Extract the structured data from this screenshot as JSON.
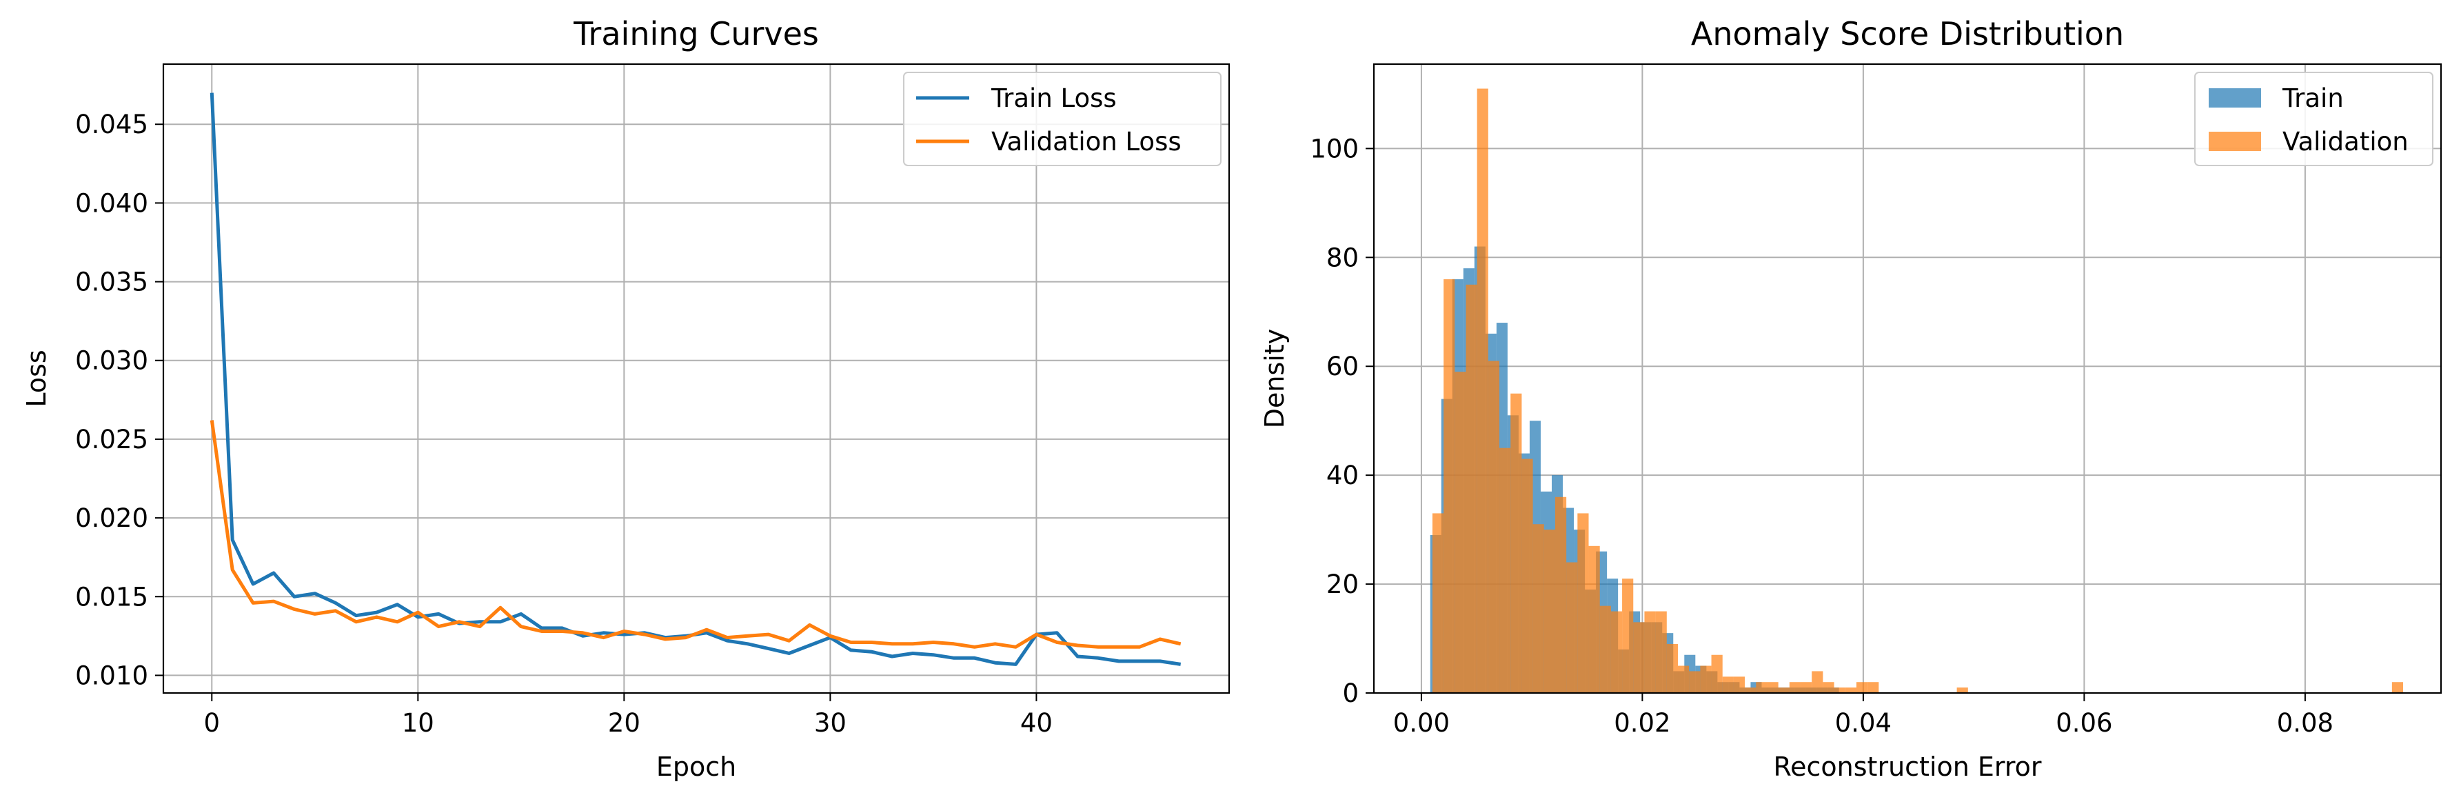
{
  "chart_data": [
    {
      "type": "line",
      "title": "Training Curves",
      "xlabel": "Epoch",
      "ylabel": "Loss",
      "xlim": [
        -2.35,
        49.35
      ],
      "ylim": [
        0.00888,
        0.04882
      ],
      "grid": true,
      "legend_position": "top-right",
      "x_ticks": [
        0,
        10,
        20,
        30,
        40
      ],
      "y_ticks": [
        0.01,
        0.015,
        0.02,
        0.025,
        0.03,
        0.035,
        0.04,
        0.045
      ],
      "x_tick_labels": [
        "0",
        "10",
        "20",
        "30",
        "40"
      ],
      "y_tick_labels": [
        "0.010",
        "0.015",
        "0.020",
        "0.025",
        "0.030",
        "0.035",
        "0.040",
        "0.045"
      ],
      "x": [
        0,
        1,
        2,
        3,
        4,
        5,
        6,
        7,
        8,
        9,
        10,
        11,
        12,
        13,
        14,
        15,
        16,
        17,
        18,
        19,
        20,
        21,
        22,
        23,
        24,
        25,
        26,
        27,
        28,
        29,
        30,
        31,
        32,
        33,
        34,
        35,
        36,
        37,
        38,
        39,
        40,
        41,
        42,
        43,
        44,
        45,
        46,
        47
      ],
      "series": [
        {
          "name": "Train Loss",
          "color": "#1f77b4",
          "values": [
            0.047,
            0.0186,
            0.0158,
            0.0165,
            0.015,
            0.0152,
            0.0146,
            0.0138,
            0.014,
            0.0145,
            0.0137,
            0.0139,
            0.0133,
            0.0134,
            0.0134,
            0.0139,
            0.013,
            0.013,
            0.0125,
            0.0127,
            0.0126,
            0.0127,
            0.0124,
            0.0125,
            0.0127,
            0.0122,
            0.012,
            0.0117,
            0.0114,
            0.0119,
            0.0124,
            0.0116,
            0.0115,
            0.0112,
            0.0114,
            0.0113,
            0.0111,
            0.0111,
            0.0108,
            0.0107,
            0.0126,
            0.0127,
            0.0112,
            0.0111,
            0.0109,
            0.0109,
            0.0109,
            0.0107
          ]
        },
        {
          "name": "Validation Loss",
          "color": "#ff7f0e",
          "values": [
            0.0262,
            0.0167,
            0.0146,
            0.0147,
            0.0142,
            0.0139,
            0.0141,
            0.0134,
            0.0137,
            0.0134,
            0.014,
            0.0131,
            0.0134,
            0.0131,
            0.0143,
            0.0131,
            0.0128,
            0.0128,
            0.0127,
            0.0124,
            0.0128,
            0.0126,
            0.0123,
            0.0124,
            0.0129,
            0.0124,
            0.0125,
            0.0126,
            0.0122,
            0.0132,
            0.0125,
            0.0121,
            0.0121,
            0.012,
            0.012,
            0.0121,
            0.012,
            0.0118,
            0.012,
            0.0118,
            0.0126,
            0.0121,
            0.0119,
            0.0118,
            0.0118,
            0.0118,
            0.0123,
            0.012
          ]
        }
      ]
    },
    {
      "type": "histogram",
      "title": "Anomaly Score Distribution",
      "xlabel": "Reconstruction Error",
      "ylabel": "Density",
      "xlim": [
        -0.0043,
        0.0923
      ],
      "ylim": [
        0,
        115.5
      ],
      "grid": true,
      "legend_position": "top-right",
      "x_ticks": [
        0.0,
        0.02,
        0.04,
        0.06,
        0.08
      ],
      "y_ticks": [
        0,
        20,
        40,
        60,
        80,
        100
      ],
      "x_tick_labels": [
        "0.00",
        "0.02",
        "0.04",
        "0.06",
        "0.08"
      ],
      "y_tick_labels": [
        "0",
        "20",
        "40",
        "60",
        "80",
        "100"
      ],
      "series": [
        {
          "name": "Train",
          "color": "#1f77b4",
          "opacity": 0.7,
          "bin_start": 0.0008,
          "bin_width": 0.001,
          "values": [
            29,
            54,
            76,
            78,
            82,
            66,
            68,
            51,
            44,
            50,
            37,
            40,
            34,
            30,
            19,
            26,
            21,
            8,
            15,
            13,
            13,
            11,
            4,
            7,
            5,
            4,
            2,
            2,
            1,
            2,
            1,
            1,
            1,
            1,
            1,
            1,
            1,
            0,
            0,
            0,
            0,
            0,
            0,
            0,
            0,
            0,
            0,
            0,
            0,
            0,
            0,
            0,
            0,
            0,
            0,
            0,
            0,
            0,
            0,
            0,
            0,
            0,
            0,
            0,
            0,
            0,
            0,
            0,
            0,
            0,
            0,
            0,
            0,
            0,
            0,
            0,
            0,
            0,
            0,
            0,
            0,
            0,
            0,
            0,
            0,
            0,
            0
          ]
        },
        {
          "name": "Validation",
          "color": "#ff7f0e",
          "opacity": 0.7,
          "bin_start": 0.001,
          "bin_width": 0.00101,
          "values": [
            33,
            76,
            59,
            75,
            111,
            61,
            45,
            55,
            43,
            31,
            30,
            36,
            24,
            33,
            27,
            16,
            15,
            21,
            13,
            15,
            15,
            9,
            5,
            4,
            5,
            7,
            3,
            3,
            1,
            2,
            2,
            1,
            2,
            2,
            4,
            2,
            1,
            1,
            2,
            2,
            0,
            0,
            0,
            0,
            0,
            0,
            0,
            1,
            0,
            0,
            0,
            0,
            0,
            0,
            0,
            0,
            0,
            0,
            0,
            0,
            0,
            0,
            0,
            0,
            0,
            0,
            0,
            0,
            0,
            0,
            0,
            0,
            0,
            0,
            0,
            0,
            0,
            0,
            0,
            0,
            0,
            0,
            0,
            0,
            0,
            0,
            2
          ]
        }
      ]
    }
  ]
}
